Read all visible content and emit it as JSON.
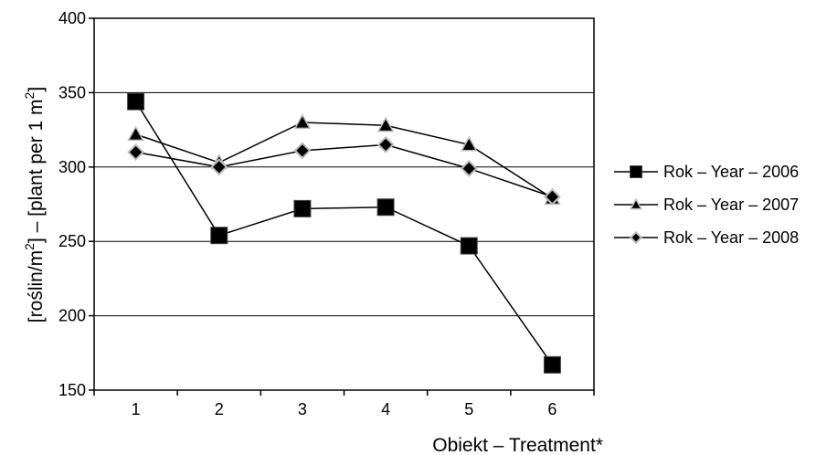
{
  "chart_data": {
    "type": "line",
    "x": [
      1,
      2,
      3,
      4,
      5,
      6
    ],
    "xlabel": "Obiekt – Treatment*",
    "ylabel": {
      "main": "[roślin/m",
      "sup1": "2",
      "middle": "] – [plant per 1 m",
      "sup2": "2",
      "end": "]"
    },
    "ylim": [
      150,
      400
    ],
    "yticks": [
      150,
      200,
      250,
      300,
      350,
      400
    ],
    "grid": true,
    "legend_position": "right",
    "series": [
      {
        "name": "Rok – Year – 2006",
        "marker": "square",
        "values": [
          344,
          254,
          272,
          273,
          247,
          167
        ]
      },
      {
        "name": "Rok – Year – 2007",
        "marker": "triangle",
        "values": [
          322,
          303,
          330,
          328,
          315,
          279
        ]
      },
      {
        "name": "Rok – Year – 2008",
        "marker": "diamond",
        "values": [
          310,
          300,
          311,
          315,
          299,
          280
        ]
      }
    ]
  }
}
